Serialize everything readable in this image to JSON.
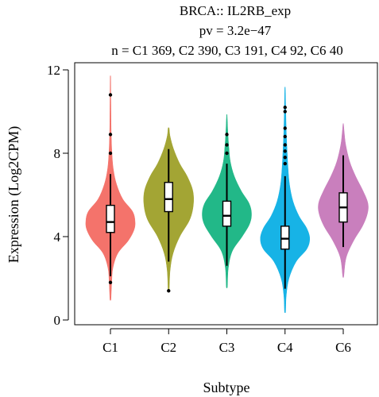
{
  "chart_data": {
    "type": "violin",
    "title_lines": [
      "BRCA:: IL2RB_exp",
      "pv = 3.2e−47",
      "n = C1 369, C2 390, C3 191, C4 92, C6 40"
    ],
    "xlabel": "Subtype",
    "ylabel": "Expression (Log2CPM)",
    "ylim": [
      0,
      12
    ],
    "yticks": [
      0,
      4,
      8,
      12
    ],
    "legend": "none",
    "grid": false,
    "categories": [
      "C1",
      "C2",
      "C3",
      "C4",
      "C6"
    ],
    "series": [
      {
        "category": "C1",
        "color": "#F4736B",
        "min": 1.0,
        "max": 11.6,
        "whisker_low": 2.1,
        "q1": 4.2,
        "median": 4.7,
        "q3": 5.5,
        "whisker_high": 7.0,
        "outliers": [
          1.8,
          8.0,
          8.9,
          10.8
        ],
        "density": [
          [
            1.0,
            0.02
          ],
          [
            1.8,
            0.05
          ],
          [
            2.5,
            0.1
          ],
          [
            3.2,
            0.3
          ],
          [
            3.8,
            0.72
          ],
          [
            4.3,
            0.95
          ],
          [
            4.7,
            1.0
          ],
          [
            5.2,
            0.9
          ],
          [
            5.8,
            0.5
          ],
          [
            6.5,
            0.25
          ],
          [
            7.2,
            0.12
          ],
          [
            8.0,
            0.06
          ],
          [
            9.0,
            0.03
          ],
          [
            10.0,
            0.02
          ],
          [
            11.6,
            0.01
          ]
        ]
      },
      {
        "category": "C2",
        "color": "#A3A534",
        "min": 1.4,
        "max": 9.2,
        "whisker_low": 2.8,
        "q1": 5.2,
        "median": 5.8,
        "q3": 6.6,
        "whisker_high": 8.2,
        "outliers": [
          1.4
        ],
        "density": [
          [
            1.4,
            0.02
          ],
          [
            2.4,
            0.06
          ],
          [
            3.2,
            0.18
          ],
          [
            4.0,
            0.45
          ],
          [
            4.8,
            0.85
          ],
          [
            5.5,
            1.0
          ],
          [
            6.2,
            0.98
          ],
          [
            6.9,
            0.75
          ],
          [
            7.5,
            0.45
          ],
          [
            8.2,
            0.2
          ],
          [
            8.8,
            0.06
          ],
          [
            9.2,
            0.02
          ]
        ]
      },
      {
        "category": "C3",
        "color": "#22B888",
        "min": 1.6,
        "max": 9.8,
        "whisker_low": 2.6,
        "q1": 4.5,
        "median": 5.0,
        "q3": 5.7,
        "whisker_high": 7.5,
        "outliers": [
          8.0,
          8.4,
          8.9
        ],
        "density": [
          [
            1.6,
            0.02
          ],
          [
            2.5,
            0.06
          ],
          [
            3.3,
            0.22
          ],
          [
            4.0,
            0.62
          ],
          [
            4.6,
            0.92
          ],
          [
            5.1,
            1.0
          ],
          [
            5.6,
            0.9
          ],
          [
            6.2,
            0.58
          ],
          [
            6.9,
            0.3
          ],
          [
            7.6,
            0.14
          ],
          [
            8.3,
            0.08
          ],
          [
            9.0,
            0.04
          ],
          [
            9.8,
            0.01
          ]
        ]
      },
      {
        "category": "C4",
        "color": "#17B3E6",
        "min": 0.4,
        "max": 11.1,
        "whisker_low": 1.5,
        "q1": 3.4,
        "median": 3.9,
        "q3": 4.5,
        "whisker_high": 6.9,
        "outliers": [
          7.5,
          7.8,
          8.1,
          8.4,
          8.8,
          9.2,
          10.0,
          10.2
        ],
        "density": [
          [
            0.4,
            0.02
          ],
          [
            1.2,
            0.05
          ],
          [
            2.0,
            0.16
          ],
          [
            2.8,
            0.45
          ],
          [
            3.4,
            0.88
          ],
          [
            3.9,
            1.0
          ],
          [
            4.4,
            0.88
          ],
          [
            5.0,
            0.56
          ],
          [
            5.7,
            0.32
          ],
          [
            6.5,
            0.18
          ],
          [
            7.3,
            0.12
          ],
          [
            8.2,
            0.08
          ],
          [
            9.0,
            0.05
          ],
          [
            10.0,
            0.03
          ],
          [
            11.1,
            0.01
          ]
        ]
      },
      {
        "category": "C6",
        "color": "#C97FBD",
        "min": 2.1,
        "max": 9.4,
        "whisker_low": 3.5,
        "q1": 4.7,
        "median": 5.4,
        "q3": 6.1,
        "whisker_high": 7.9,
        "outliers": [],
        "density": [
          [
            2.1,
            0.02
          ],
          [
            3.0,
            0.12
          ],
          [
            3.8,
            0.42
          ],
          [
            4.5,
            0.78
          ],
          [
            5.1,
            0.98
          ],
          [
            5.6,
            1.0
          ],
          [
            6.2,
            0.8
          ],
          [
            6.9,
            0.5
          ],
          [
            7.6,
            0.26
          ],
          [
            8.4,
            0.1
          ],
          [
            9.0,
            0.04
          ],
          [
            9.4,
            0.01
          ]
        ]
      }
    ]
  }
}
